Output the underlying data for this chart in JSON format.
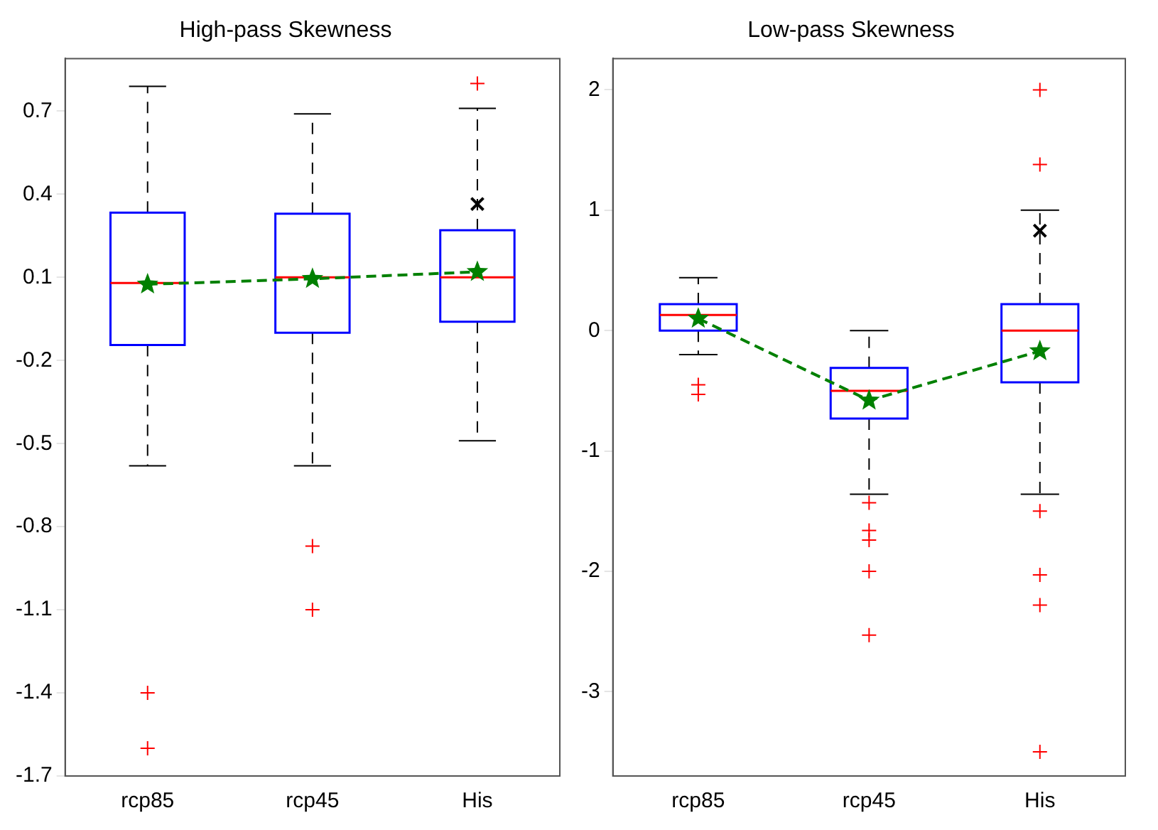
{
  "chart_data": [
    {
      "type": "box",
      "title": "High-pass Skewness",
      "categories": [
        "rcp85",
        "rcp45",
        "His"
      ],
      "ylim": [
        -1.7,
        0.89
      ],
      "yticks": [
        -1.7,
        -1.4,
        -1.1,
        -0.8,
        -0.5,
        -0.2,
        0.1,
        0.4,
        0.7
      ],
      "grid": false,
      "legend": false,
      "series": [
        {
          "color": "#0000ff",
          "boxes": [
            {
              "low": -0.58,
              "q1": -0.144,
              "median": 0.08,
              "q3": 0.334,
              "high": 0.79,
              "outliers": [
                -1.4,
                -1.6
              ]
            },
            {
              "low": -0.58,
              "q1": -0.1,
              "median": 0.1,
              "q3": 0.33,
              "high": 0.69,
              "outliers": [
                -0.87,
                -1.1
              ]
            },
            {
              "low": -0.49,
              "q1": -0.06,
              "median": 0.1,
              "q3": 0.27,
              "high": 0.71,
              "outliers": [
                0.8
              ]
            }
          ]
        },
        {
          "type": "line",
          "color": "#008000",
          "marker": "star",
          "line_style": "dashed",
          "values": [
            0.075,
            0.095,
            0.12
          ]
        },
        {
          "type": "scatter",
          "color": "#000000",
          "marker": "cross",
          "values": [
            null,
            null,
            0.365
          ]
        }
      ]
    },
    {
      "type": "box",
      "title": "Low-pass Skewness",
      "categories": [
        "rcp85",
        "rcp45",
        "His"
      ],
      "ylim": [
        -3.7,
        2.26
      ],
      "yticks": [
        -3,
        -2,
        -1,
        0,
        1,
        2
      ],
      "grid": false,
      "legend": false,
      "series": [
        {
          "color": "#0000ff",
          "boxes": [
            {
              "low": -0.2,
              "q1": 0,
              "median": 0.13,
              "q3": 0.22,
              "high": 0.44,
              "outliers": [
                -0.45,
                -0.53
              ]
            },
            {
              "low": -1.36,
              "q1": -0.73,
              "median": -0.5,
              "q3": -0.31,
              "high": 0,
              "outliers": [
                -1.43,
                -1.66,
                -1.74,
                -2,
                -2.53
              ]
            },
            {
              "low": -1.36,
              "q1": -0.43,
              "median": 0,
              "q3": 0.22,
              "high": 1,
              "outliers": [
                2,
                1.38,
                -1.5,
                -2.03,
                -2.28,
                -3.5
              ]
            }
          ]
        },
        {
          "type": "line",
          "color": "#008000",
          "marker": "star",
          "line_style": "dashed",
          "values": [
            0.1,
            -0.58,
            -0.17
          ]
        },
        {
          "type": "scatter",
          "color": "#000000",
          "marker": "cross",
          "values": [
            null,
            null,
            0.83
          ]
        }
      ]
    }
  ]
}
